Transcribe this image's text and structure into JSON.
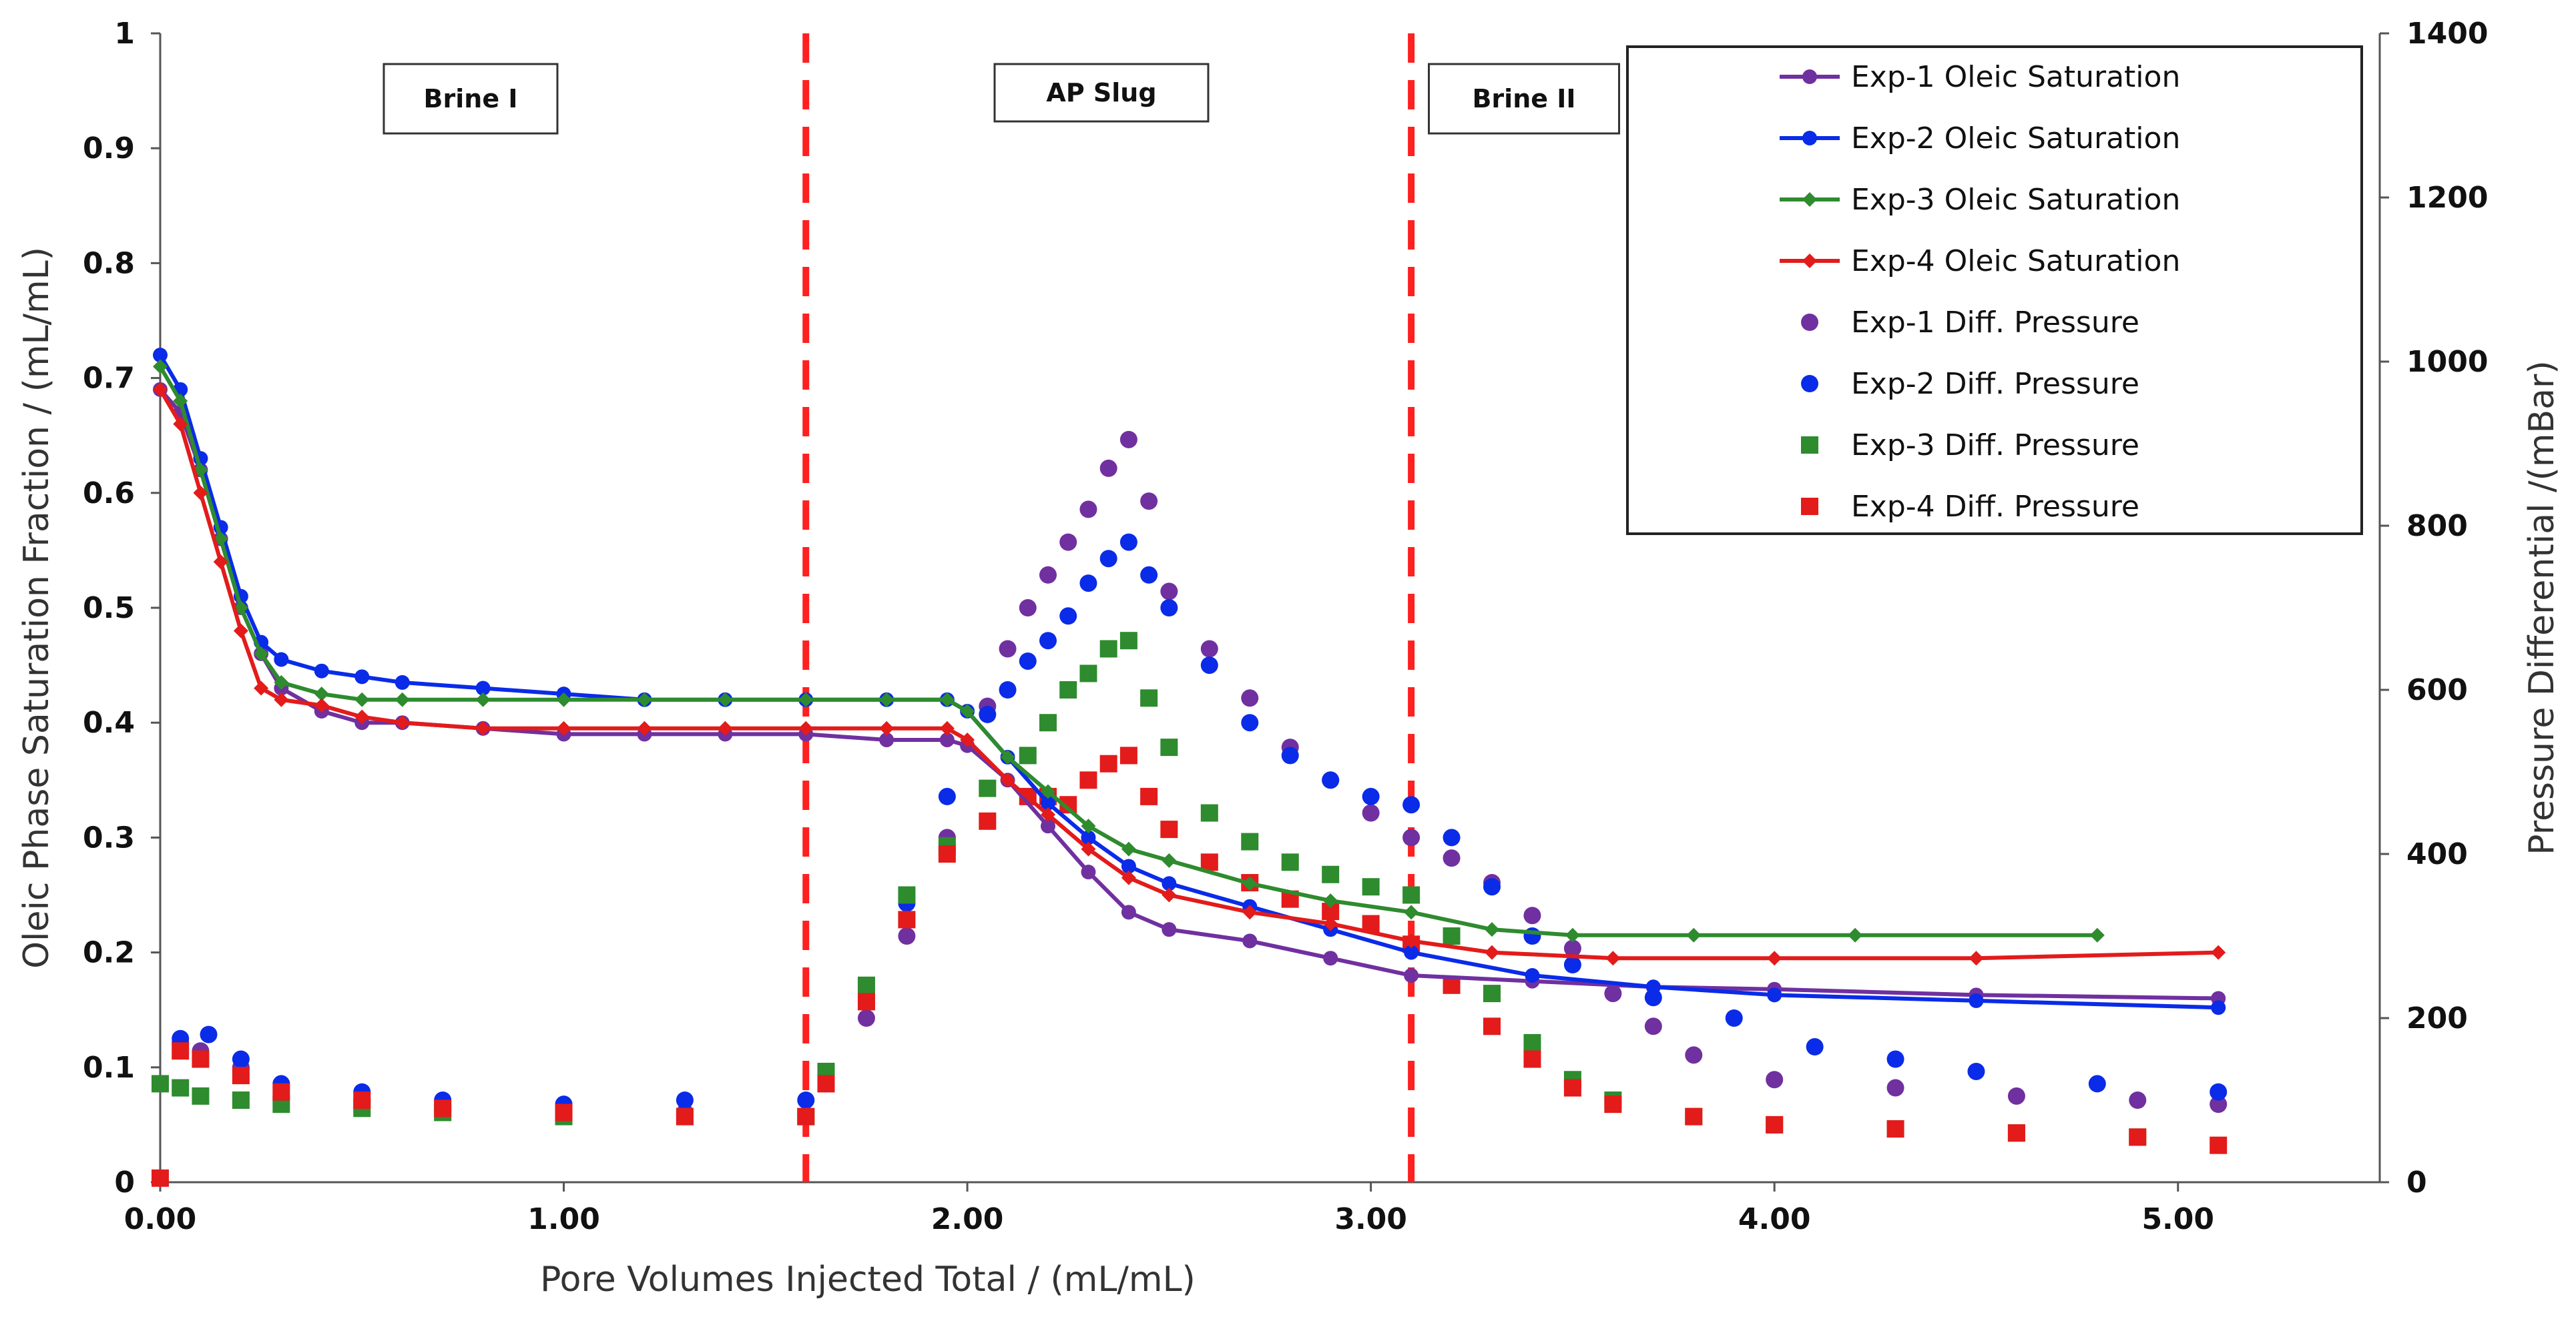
{
  "chart_data": {
    "type": "scatter",
    "title": "",
    "xlabel": "Pore Volumes Injected Total / (mL/mL)",
    "ylabel": "Oleic Phase Saturation Fraction / (mL/mL)",
    "y2label": "Pressure Differential /(mBar)",
    "xlim": [
      0,
      5.5
    ],
    "ylim": [
      0,
      1
    ],
    "y2lim": [
      0,
      1400
    ],
    "x_ticks": [
      "0.00",
      "1.00",
      "2.00",
      "3.00",
      "4.00",
      "5.00"
    ],
    "y_ticks": [
      "0",
      "0.1",
      "0.2",
      "0.3",
      "0.4",
      "0.5",
      "0.6",
      "0.7",
      "0.8",
      "0.9",
      "1"
    ],
    "y2_ticks": [
      "0",
      "200",
      "400",
      "600",
      "800",
      "1000",
      "1200",
      "1400"
    ],
    "phases": [
      {
        "label": "Brine Ⅰ",
        "x_start": 0.0,
        "x_end": 1.6
      },
      {
        "label": "AP Slug",
        "x_start": 1.6,
        "x_end": 3.1
      },
      {
        "label": "Brine II",
        "x_start": 3.1,
        "x_end": 5.5
      }
    ],
    "phase_boundaries": [
      1.6,
      3.1
    ],
    "legend_position": "top-right",
    "series": [
      {
        "name": "Exp-1 Oleic Saturation",
        "axis": "left",
        "style": "line-circle",
        "color": "#7030a0",
        "x": [
          0,
          0.05,
          0.1,
          0.15,
          0.2,
          0.25,
          0.3,
          0.4,
          0.5,
          0.6,
          0.8,
          1.0,
          1.2,
          1.4,
          1.6,
          1.8,
          1.95,
          2.0,
          2.1,
          2.2,
          2.3,
          2.4,
          2.5,
          2.7,
          2.9,
          3.1,
          3.4,
          3.7,
          4.0,
          4.5,
          5.1
        ],
        "y": [
          0.69,
          0.67,
          0.62,
          0.56,
          0.5,
          0.46,
          0.43,
          0.41,
          0.4,
          0.4,
          0.395,
          0.39,
          0.39,
          0.39,
          0.39,
          0.385,
          0.385,
          0.38,
          0.35,
          0.31,
          0.27,
          0.235,
          0.22,
          0.21,
          0.195,
          0.18,
          0.175,
          0.17,
          0.168,
          0.163,
          0.16
        ]
      },
      {
        "name": "Exp-2 Oleic Saturation",
        "axis": "left",
        "style": "line-circle",
        "color": "#0a2be8",
        "x": [
          0,
          0.05,
          0.1,
          0.15,
          0.2,
          0.25,
          0.3,
          0.4,
          0.5,
          0.6,
          0.8,
          1.0,
          1.2,
          1.4,
          1.6,
          1.8,
          1.95,
          2.0,
          2.1,
          2.2,
          2.3,
          2.4,
          2.5,
          2.7,
          2.9,
          3.1,
          3.4,
          3.7,
          4.0,
          4.5,
          5.1
        ],
        "y": [
          0.72,
          0.69,
          0.63,
          0.57,
          0.51,
          0.47,
          0.455,
          0.445,
          0.44,
          0.435,
          0.43,
          0.425,
          0.42,
          0.42,
          0.42,
          0.42,
          0.42,
          0.41,
          0.37,
          0.33,
          0.3,
          0.275,
          0.26,
          0.24,
          0.22,
          0.2,
          0.18,
          0.17,
          0.163,
          0.158,
          0.152
        ]
      },
      {
        "name": "Exp-3 Oleic Saturation",
        "axis": "left",
        "style": "line-diamond",
        "color": "#2e8b2e",
        "x": [
          0,
          0.05,
          0.1,
          0.15,
          0.2,
          0.25,
          0.3,
          0.4,
          0.5,
          0.6,
          0.8,
          1.0,
          1.2,
          1.4,
          1.6,
          1.8,
          1.95,
          2.0,
          2.1,
          2.2,
          2.3,
          2.4,
          2.5,
          2.7,
          2.9,
          3.1,
          3.3,
          3.5,
          3.8,
          4.2,
          4.8
        ],
        "y": [
          0.71,
          0.68,
          0.62,
          0.56,
          0.5,
          0.46,
          0.435,
          0.425,
          0.42,
          0.42,
          0.42,
          0.42,
          0.42,
          0.42,
          0.42,
          0.42,
          0.42,
          0.41,
          0.37,
          0.34,
          0.31,
          0.29,
          0.28,
          0.26,
          0.245,
          0.235,
          0.22,
          0.215,
          0.215,
          0.215,
          0.215
        ]
      },
      {
        "name": "Exp-4 Oleic Saturation",
        "axis": "left",
        "style": "line-diamond",
        "color": "#e31b1b",
        "x": [
          0,
          0.05,
          0.1,
          0.15,
          0.2,
          0.25,
          0.3,
          0.4,
          0.5,
          0.6,
          0.8,
          1.0,
          1.2,
          1.4,
          1.6,
          1.8,
          1.95,
          2.0,
          2.1,
          2.2,
          2.3,
          2.4,
          2.5,
          2.7,
          2.9,
          3.1,
          3.3,
          3.6,
          4.0,
          4.5,
          5.1
        ],
        "y": [
          0.69,
          0.66,
          0.6,
          0.54,
          0.48,
          0.43,
          0.42,
          0.415,
          0.405,
          0.4,
          0.395,
          0.395,
          0.395,
          0.395,
          0.395,
          0.395,
          0.395,
          0.385,
          0.35,
          0.32,
          0.29,
          0.265,
          0.25,
          0.235,
          0.225,
          0.21,
          0.2,
          0.195,
          0.195,
          0.195,
          0.2
        ]
      },
      {
        "name": "Exp-1 Diff. Pressure",
        "axis": "right",
        "style": "circle",
        "color": "#7030a0",
        "x": [
          0.05,
          0.1,
          0.2,
          0.3,
          0.5,
          0.7,
          1.0,
          1.3,
          1.6,
          1.65,
          1.75,
          1.85,
          1.95,
          2.05,
          2.1,
          2.15,
          2.2,
          2.25,
          2.3,
          2.35,
          2.4,
          2.45,
          2.5,
          2.6,
          2.7,
          2.8,
          2.9,
          3.0,
          3.1,
          3.2,
          3.3,
          3.4,
          3.5,
          3.6,
          3.7,
          3.8,
          4.0,
          4.3,
          4.6,
          4.9,
          5.1
        ],
        "y": [
          170,
          160,
          140,
          115,
          100,
          95,
          90,
          85,
          80,
          120,
          200,
          300,
          420,
          580,
          650,
          700,
          740,
          780,
          820,
          870,
          905,
          830,
          720,
          650,
          590,
          530,
          490,
          450,
          420,
          395,
          365,
          325,
          285,
          230,
          190,
          155,
          125,
          115,
          105,
          100,
          95
        ]
      },
      {
        "name": "Exp-2 Diff. Pressure",
        "axis": "right",
        "style": "circle",
        "color": "#0a2be8",
        "x": [
          0.05,
          0.12,
          0.2,
          0.3,
          0.5,
          0.7,
          1.0,
          1.3,
          1.6,
          1.65,
          1.75,
          1.85,
          1.95,
          2.05,
          2.1,
          2.15,
          2.2,
          2.25,
          2.3,
          2.35,
          2.4,
          2.45,
          2.5,
          2.6,
          2.7,
          2.8,
          2.9,
          3.0,
          3.1,
          3.2,
          3.3,
          3.4,
          3.5,
          3.7,
          3.9,
          4.1,
          4.3,
          4.5,
          4.8,
          5.1
        ],
        "y": [
          175,
          180,
          150,
          120,
          110,
          100,
          95,
          100,
          100,
          130,
          220,
          340,
          470,
          570,
          600,
          635,
          660,
          690,
          730,
          760,
          780,
          740,
          700,
          630,
          560,
          520,
          490,
          470,
          460,
          420,
          360,
          300,
          265,
          225,
          200,
          165,
          150,
          135,
          120,
          110
        ]
      },
      {
        "name": "Exp-3 Diff. Pressure",
        "axis": "right",
        "style": "square",
        "color": "#2e8b2e",
        "x": [
          0,
          0.05,
          0.1,
          0.2,
          0.3,
          0.5,
          0.7,
          1.0,
          1.3,
          1.6,
          1.65,
          1.75,
          1.85,
          1.95,
          2.05,
          2.15,
          2.2,
          2.25,
          2.3,
          2.35,
          2.4,
          2.45,
          2.5,
          2.6,
          2.7,
          2.8,
          2.9,
          3.0,
          3.1,
          3.2,
          3.3,
          3.4,
          3.5,
          3.6,
          3.8,
          4.0,
          4.3,
          4.6,
          4.9
        ],
        "y": [
          120,
          115,
          105,
          100,
          95,
          90,
          85,
          80,
          80,
          80,
          135,
          240,
          350,
          410,
          480,
          520,
          560,
          600,
          620,
          650,
          660,
          590,
          530,
          450,
          415,
          390,
          375,
          360,
          350,
          300,
          230,
          170,
          125,
          100,
          80,
          70,
          65,
          60,
          55
        ]
      },
      {
        "name": "Exp-4 Diff. Pressure",
        "axis": "right",
        "style": "square",
        "color": "#e31b1b",
        "x": [
          0,
          0.05,
          0.1,
          0.2,
          0.3,
          0.5,
          0.7,
          1.0,
          1.3,
          1.6,
          1.65,
          1.75,
          1.85,
          1.95,
          2.05,
          2.15,
          2.2,
          2.25,
          2.3,
          2.35,
          2.4,
          2.45,
          2.5,
          2.6,
          2.7,
          2.8,
          2.9,
          3.0,
          3.1,
          3.2,
          3.3,
          3.4,
          3.5,
          3.6,
          3.8,
          4.0,
          4.3,
          4.6,
          4.9,
          5.1
        ],
        "y": [
          5,
          160,
          150,
          130,
          110,
          100,
          90,
          85,
          80,
          80,
          120,
          220,
          320,
          400,
          440,
          470,
          470,
          460,
          490,
          510,
          520,
          470,
          430,
          390,
          365,
          345,
          330,
          315,
          290,
          240,
          190,
          150,
          115,
          95,
          80,
          70,
          65,
          60,
          55,
          45
        ]
      }
    ]
  }
}
